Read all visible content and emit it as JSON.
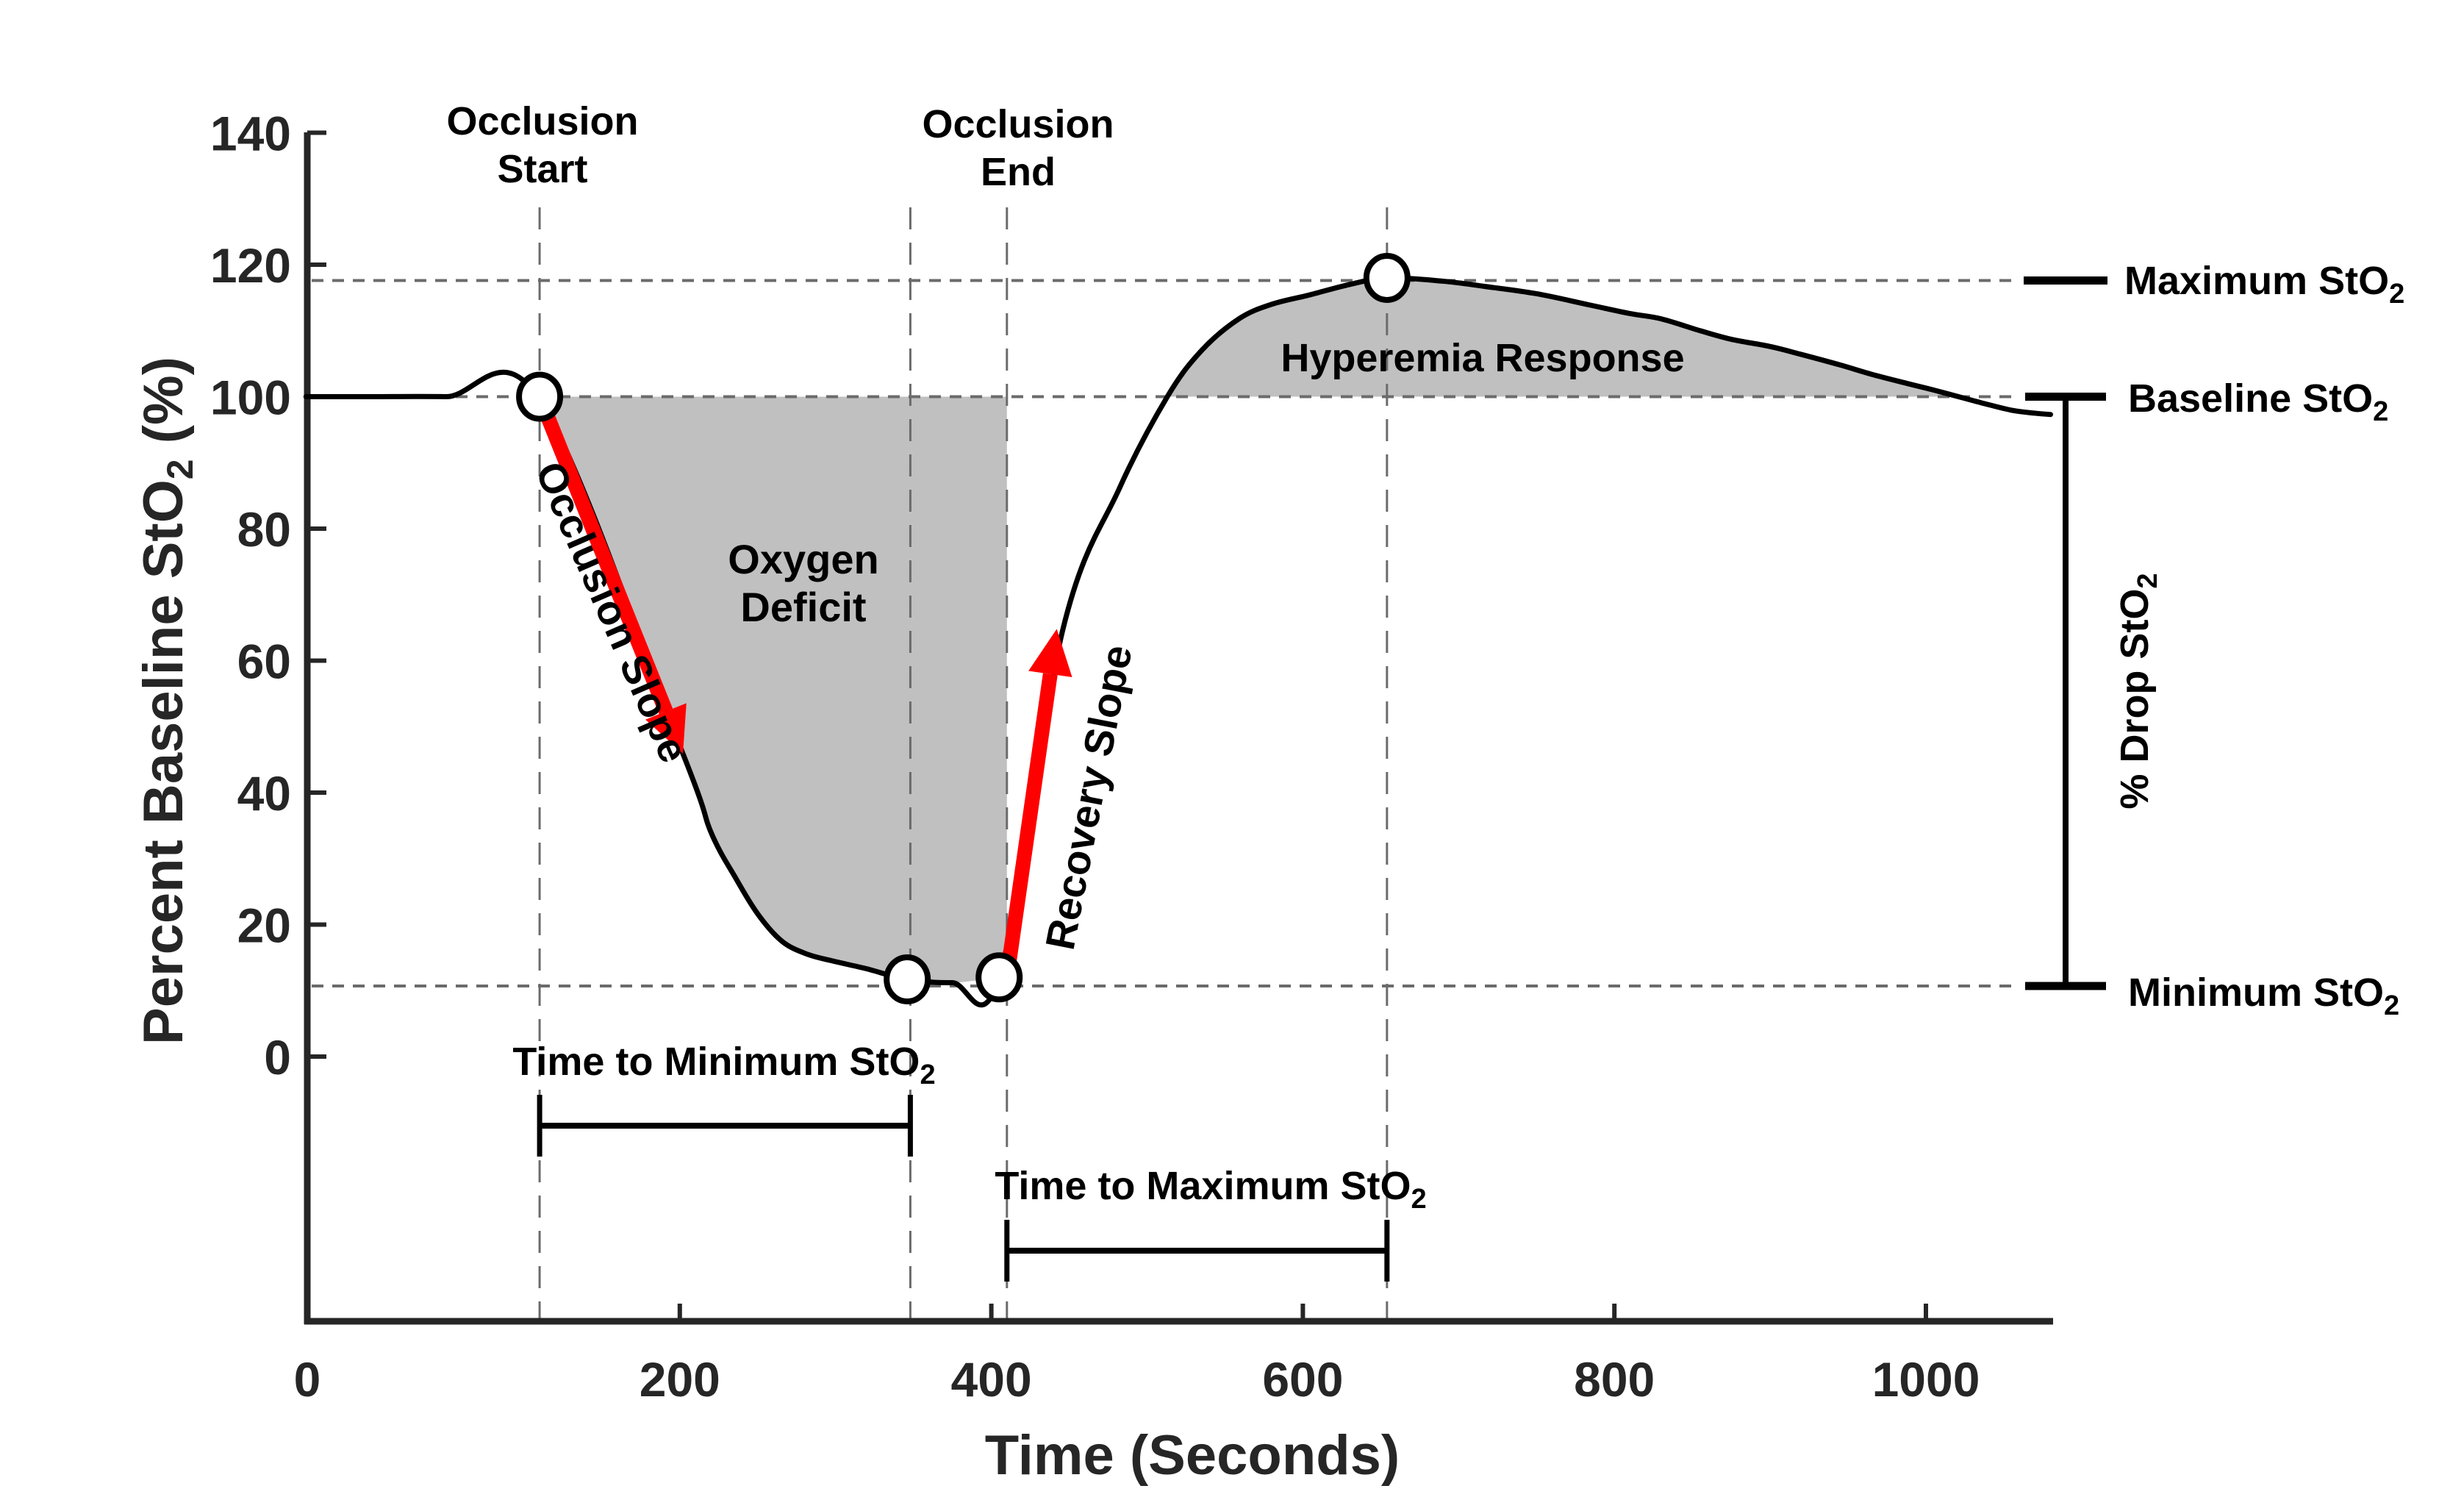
{
  "chart_data": {
    "type": "line",
    "title": "",
    "xlabel": "Time (Seconds)",
    "ylabel_main": "Percent Baseline StO",
    "ylabel_sub": "2",
    "ylabel_tail": " (%)",
    "xlim": [
      -40,
      1082
    ],
    "ylim": [
      -40,
      140
    ],
    "x_ticks": [
      {
        "value": 200,
        "label": "200"
      },
      {
        "value": 400,
        "label": "400"
      },
      {
        "value": 600,
        "label": "600"
      },
      {
        "value": 800,
        "label": "800"
      },
      {
        "value": 1000,
        "label": "1000"
      }
    ],
    "x_origin_label": "0",
    "y_ticks": [
      {
        "value": 0,
        "label": "0"
      },
      {
        "value": 20,
        "label": "20"
      },
      {
        "value": 40,
        "label": "40"
      },
      {
        "value": 60,
        "label": "60"
      },
      {
        "value": 80,
        "label": "80"
      },
      {
        "value": 100,
        "label": "100"
      },
      {
        "value": 120,
        "label": "120"
      },
      {
        "value": 140,
        "label": "140"
      }
    ],
    "grid": false,
    "legend": "none",
    "series": [
      {
        "name": "StO2 percent baseline",
        "color": "#000000",
        "x": [
          -40,
          0,
          50,
          110,
          202,
          220,
          236,
          251,
          266,
          282,
          298,
          320,
          346,
          375,
          405,
          446,
          482,
          513,
          535,
          559,
          580,
          604,
          630,
          654,
          690,
          717,
          750,
          784,
          810,
          830,
          855,
          875,
          900,
          920,
          945,
          965,
          988,
          1005,
          1024,
          1040,
          1056,
          1070,
          1080
        ],
        "y": [
          100,
          100,
          100,
          99.6,
          45.9,
          34,
          27,
          21.3,
          17.4,
          15.5,
          14.5,
          13.3,
          11.7,
          11.2,
          12,
          64.8,
          86,
          100,
          107,
          111.8,
          114,
          115.4,
          117,
          118,
          117.5,
          116.7,
          115.6,
          113.9,
          112.6,
          111.8,
          110,
          108.7,
          107.6,
          106.4,
          104.8,
          103.4,
          102,
          101,
          99.8,
          98.8,
          97.9,
          97.5,
          97.3
        ]
      }
    ],
    "key_points": [
      {
        "name": "occlusion-start",
        "x": 110,
        "y": 100
      },
      {
        "name": "minimum",
        "x": 346,
        "y": 11.7
      },
      {
        "name": "occlusion-end",
        "x": 405,
        "y": 12
      },
      {
        "name": "maximum",
        "x": 654,
        "y": 118
      }
    ],
    "reference_lines": {
      "vertical": [
        {
          "name": "occlusion-start",
          "x": 110
        },
        {
          "name": "time-of-minimum",
          "x": 348
        },
        {
          "name": "occlusion-end",
          "x": 410
        },
        {
          "name": "time-of-maximum",
          "x": 654
        }
      ],
      "horizontal": [
        {
          "name": "maximum",
          "y": 117.6
        },
        {
          "name": "baseline",
          "y": 100
        },
        {
          "name": "minimum",
          "y": 10.7
        }
      ]
    },
    "shaded_regions": [
      {
        "name": "oxygen-deficit",
        "label_line1": "Oxygen",
        "label_line2": "Deficit",
        "color": "#c0c0c0",
        "from_x": 110,
        "to_x": 410,
        "between": "curve and baseline 100"
      },
      {
        "name": "hyperemia-response",
        "label": "Hyperemia Response",
        "color": "#c0c0c0",
        "from_x": 513,
        "to_x": 1024,
        "between": "curve and baseline 100"
      }
    ],
    "arrows": [
      {
        "name": "occlusion-slope",
        "label": "Occlusion Slope",
        "color": "#ff0000",
        "from": [
          110,
          100
        ],
        "to": [
          202,
          45.9
        ]
      },
      {
        "name": "recovery-slope",
        "label": "Recovery Slope",
        "color": "#ff0000",
        "from": [
          410,
          12
        ],
        "to": [
          442,
          64.8
        ]
      }
    ],
    "annotations": {
      "occlusion_start": {
        "line1": "Occlusion",
        "line2": "Start"
      },
      "occlusion_end": {
        "line1": "Occlusion",
        "line2": "End"
      },
      "time_to_min": {
        "text": "Time to Minimum StO",
        "sub": "2",
        "from_x": 110,
        "to_x": 348,
        "level": -9
      },
      "time_to_max": {
        "text": "Time to Maximum StO",
        "sub": "2",
        "from_x": 410,
        "to_x": 654,
        "level": -28
      },
      "maximum_level": {
        "text": "Maximum StO",
        "sub": "2"
      },
      "baseline_level": {
        "text": "Baseline StO",
        "sub": "2"
      },
      "minimum_level": {
        "text": "Minimum StO",
        "sub": "2"
      },
      "percent_drop": {
        "text": "% Drop StO",
        "sub": "2"
      }
    },
    "colors": {
      "shade": "#c0c0c0",
      "arrow": "#ff0000",
      "reference": "#6b6b6b",
      "axis": "#262626"
    }
  }
}
